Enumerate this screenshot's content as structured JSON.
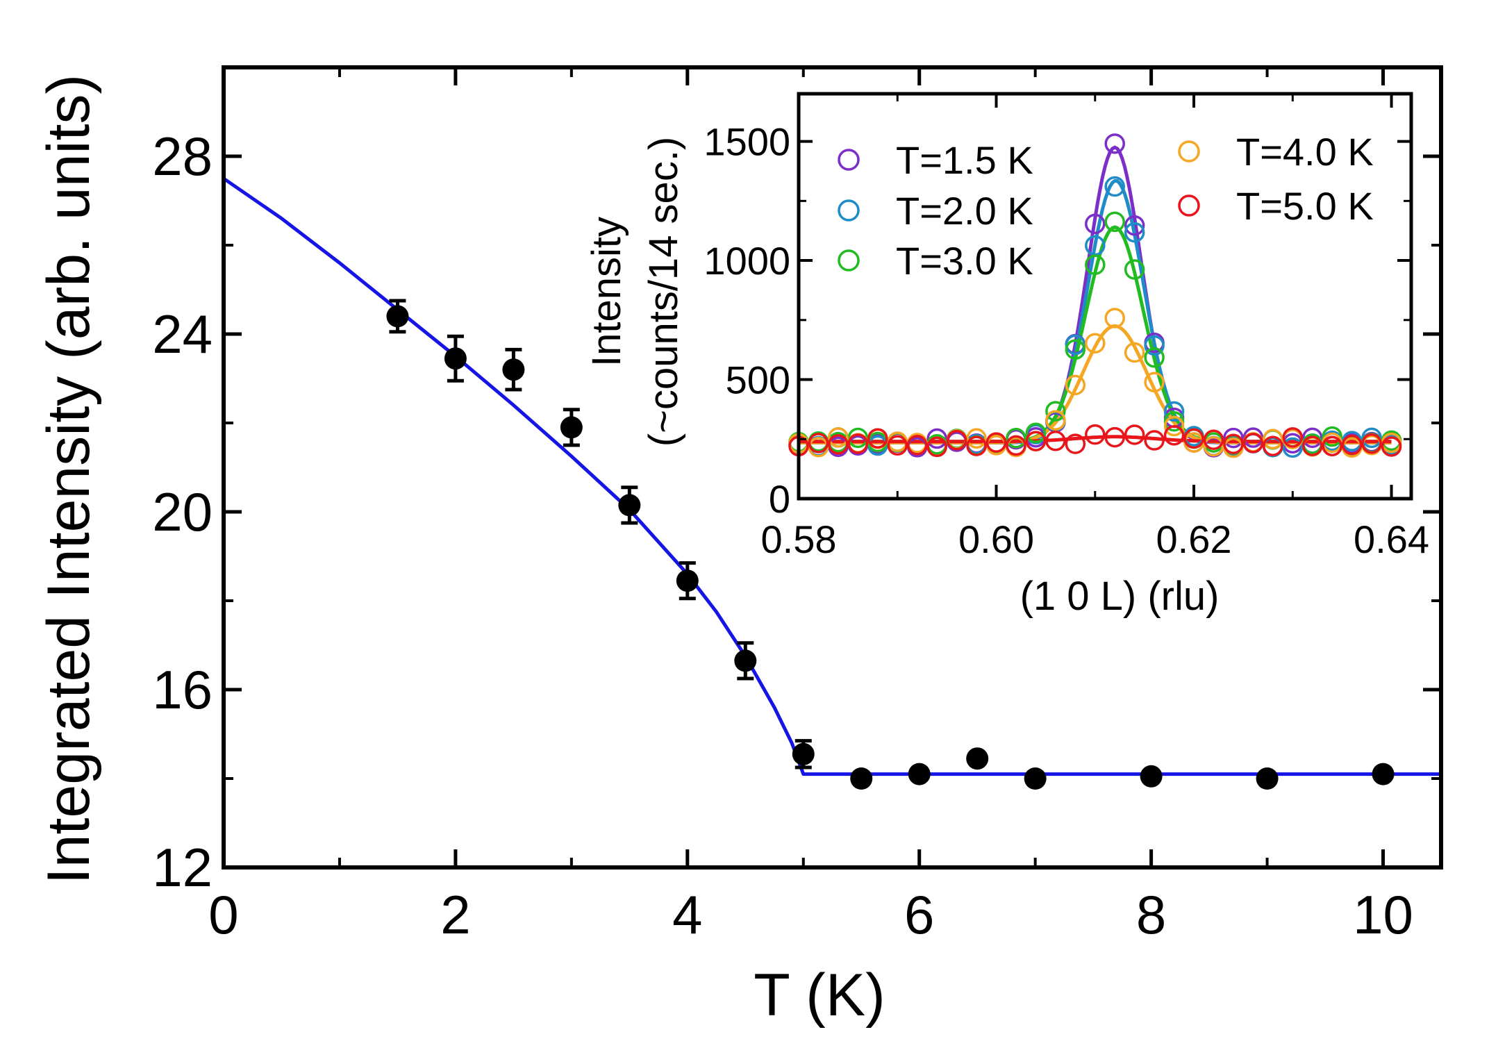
{
  "chart_data": [
    {
      "type": "scatter",
      "title": "",
      "xlabel": "T (K)",
      "ylabel": "Integrated Intensity (arb. units)",
      "xlim": [
        0,
        10.5
      ],
      "ylim": [
        12,
        30
      ],
      "xticks": [
        0,
        2,
        4,
        6,
        8,
        10
      ],
      "xtick_labels": [
        "0",
        "2",
        "4",
        "6",
        "8",
        "10"
      ],
      "yticks": [
        12,
        16,
        20,
        24,
        28
      ],
      "ytick_labels": [
        "12",
        "16",
        "20",
        "24",
        "28"
      ],
      "grid": false,
      "series": [
        {
          "name": "data",
          "color": "#000000",
          "points": [
            {
              "x": 1.5,
              "y": 24.4,
              "err": 0.35
            },
            {
              "x": 2.0,
              "y": 23.45,
              "err": 0.5
            },
            {
              "x": 2.5,
              "y": 23.2,
              "err": 0.45
            },
            {
              "x": 3.0,
              "y": 21.9,
              "err": 0.4
            },
            {
              "x": 3.5,
              "y": 20.15,
              "err": 0.4
            },
            {
              "x": 4.0,
              "y": 18.45,
              "err": 0.4
            },
            {
              "x": 4.5,
              "y": 16.65,
              "err": 0.4
            },
            {
              "x": 5.0,
              "y": 14.55,
              "err": 0.3
            },
            {
              "x": 5.5,
              "y": 14.0,
              "err": 0
            },
            {
              "x": 6.0,
              "y": 14.1,
              "err": 0
            },
            {
              "x": 6.5,
              "y": 14.45,
              "err": 0
            },
            {
              "x": 7.0,
              "y": 14.0,
              "err": 0
            },
            {
              "x": 8.0,
              "y": 14.05,
              "err": 0
            },
            {
              "x": 9.0,
              "y": 14.0,
              "err": 0
            },
            {
              "x": 10.0,
              "y": 14.1,
              "err": 0
            }
          ]
        },
        {
          "name": "fit",
          "type": "line",
          "color": "#1515e6",
          "x": [
            0,
            0.5,
            1.0,
            1.5,
            2.0,
            2.5,
            3.0,
            3.5,
            4.0,
            4.25,
            4.5,
            4.75,
            4.9,
            5.0,
            10.5
          ],
          "y": [
            27.5,
            26.6,
            25.6,
            24.55,
            23.5,
            22.4,
            21.25,
            20.05,
            18.6,
            17.75,
            16.75,
            15.6,
            14.8,
            14.1,
            14.1
          ]
        }
      ]
    },
    {
      "type": "scatter",
      "title": "",
      "xlabel": "(1 0 L) (rlu)",
      "ylabel_line1": "Intensity",
      "ylabel_line2": "(~counts/14 sec.)",
      "xlim": [
        0.58,
        0.642
      ],
      "ylim": [
        0,
        1700
      ],
      "xticks": [
        0.58,
        0.6,
        0.62,
        0.64
      ],
      "xtick_labels": [
        "0.58",
        "0.60",
        "0.62",
        "0.64"
      ],
      "yticks": [
        0,
        500,
        1000,
        1500
      ],
      "ytick_labels": [
        "0",
        "500",
        "1000",
        "1500"
      ],
      "grid": false,
      "series": [
        {
          "name": "T=1.5 K",
          "color": "#7b2fc8",
          "amplitude": 1240,
          "center": 0.612,
          "sigma": 0.0027,
          "background": 235
        },
        {
          "name": "T=2.0 K",
          "color": "#1f8cc8",
          "amplitude": 1100,
          "center": 0.6121,
          "sigma": 0.0028,
          "background": 235
        },
        {
          "name": "T=3.0 K",
          "color": "#22bb22",
          "amplitude": 900,
          "center": 0.612,
          "sigma": 0.0029,
          "background": 240
        },
        {
          "name": "T=4.0 K",
          "color": "#f5a623",
          "amplitude": 490,
          "center": 0.612,
          "sigma": 0.0032,
          "background": 235
        },
        {
          "name": "T=5.0 K",
          "color": "#e8151b",
          "amplitude": 20,
          "center": 0.612,
          "sigma": 0.004,
          "background": 240
        }
      ]
    }
  ]
}
